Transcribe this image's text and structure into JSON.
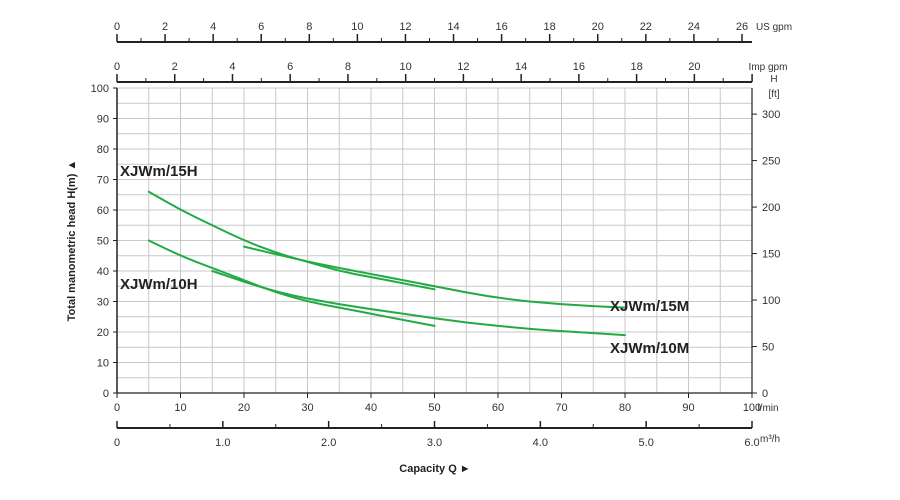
{
  "chart_data": {
    "type": "line",
    "x_primary": {
      "unit": "l/min",
      "range": [
        0,
        100
      ],
      "ticks": [
        0,
        10,
        20,
        30,
        40,
        50,
        60,
        70,
        80,
        90,
        100
      ]
    },
    "y_primary": {
      "label": "Total manometric head H(m)",
      "unit": "",
      "range": [
        0,
        100
      ],
      "ticks": [
        0,
        10,
        20,
        30,
        40,
        50,
        60,
        70,
        80,
        90,
        100
      ]
    },
    "y_secondary": {
      "label": "H",
      "unit": "[ft]",
      "ticks": [
        0,
        50,
        100,
        150,
        200,
        250,
        300
      ]
    },
    "top_axes": [
      {
        "unit": "US gpm",
        "ticks": [
          0,
          2,
          4,
          6,
          8,
          10,
          12,
          14,
          16,
          18,
          20,
          22,
          24,
          26
        ]
      },
      {
        "unit": "Imp gpm",
        "ticks": [
          0,
          2,
          4,
          6,
          8,
          10,
          12,
          14,
          16,
          18,
          20
        ]
      }
    ],
    "bottom_axis2": {
      "unit": "m³/h",
      "ticks": [
        "0",
        "1.0",
        "2.0",
        "3.0",
        "4.0",
        "5.0",
        "6.0"
      ]
    },
    "xlabel": "Capacity Q",
    "grid": true,
    "series": [
      {
        "name": "XJWm/15H",
        "x": [
          5,
          10,
          15,
          20,
          25,
          30,
          35,
          40,
          45,
          50
        ],
        "y": [
          66,
          60,
          55,
          50,
          46,
          43,
          40,
          38,
          36,
          34
        ]
      },
      {
        "name": "XJWm/15M",
        "x": [
          20,
          30,
          40,
          50,
          60,
          70,
          80
        ],
        "y": [
          48,
          43,
          39,
          35,
          31,
          29,
          28
        ]
      },
      {
        "name": "XJWm/10H",
        "x": [
          5,
          10,
          15,
          20,
          25,
          30,
          35,
          40,
          45,
          50
        ],
        "y": [
          50,
          45,
          41,
          37,
          33,
          30,
          28,
          26,
          24,
          22
        ]
      },
      {
        "name": "XJWm/10M",
        "x": [
          15,
          25,
          35,
          45,
          55,
          65,
          72,
          80
        ],
        "y": [
          40,
          33,
          29,
          26,
          23,
          21,
          20,
          19
        ]
      }
    ],
    "color": "#22aa44"
  }
}
